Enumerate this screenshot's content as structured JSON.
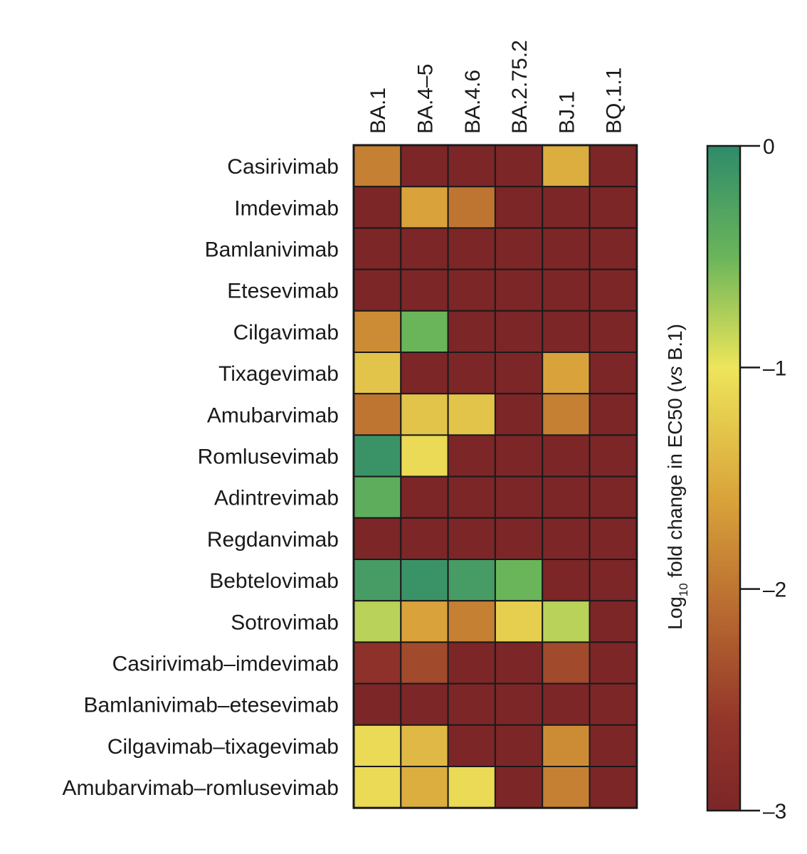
{
  "chart_data": {
    "type": "heatmap",
    "title": "",
    "columns": [
      "BA.1",
      "BA.4–5",
      "BA.4.6",
      "BA.2.75.2",
      "BJ.1",
      "BQ.1.1"
    ],
    "rows": [
      "Casirivimab",
      "Imdevimab",
      "Bamlanivimab",
      "Etesevimab",
      "Cilgavimab",
      "Tixagevimab",
      "Amubarvimab",
      "Romlusevimab",
      "Adintrevimab",
      "Regdanvimab",
      "Bebtelovimab",
      "Sotrovimab",
      "Casirivimab–imdevimab",
      "Bamlanivimab–etesevimab",
      "Cilgavimab–tixagevimab",
      "Amubarvimab–romlusevimab"
    ],
    "values": [
      [
        -1.9,
        -3.0,
        -3.0,
        -3.0,
        -1.5,
        -3.0
      ],
      [
        -3.0,
        -1.6,
        -2.0,
        -3.0,
        -3.0,
        -3.0
      ],
      [
        -3.0,
        -3.0,
        -3.0,
        -3.0,
        -3.0,
        -3.0
      ],
      [
        -3.0,
        -3.0,
        -3.0,
        -3.0,
        -3.0,
        -3.0
      ],
      [
        -1.8,
        -0.5,
        -3.0,
        -3.0,
        -3.0,
        -3.0
      ],
      [
        -1.3,
        -3.0,
        -3.0,
        -3.0,
        -1.6,
        -3.0
      ],
      [
        -2.0,
        -1.3,
        -1.3,
        -3.0,
        -1.9,
        -3.0
      ],
      [
        -0.1,
        -1.1,
        -3.0,
        -3.0,
        -3.0,
        -3.0
      ],
      [
        -0.4,
        -3.0,
        -3.0,
        -3.0,
        -3.0,
        -3.0
      ],
      [
        -3.0,
        -3.0,
        -3.0,
        -3.0,
        -3.0,
        -3.0
      ],
      [
        -0.2,
        -0.1,
        -0.2,
        -0.5,
        -3.0,
        -3.0
      ],
      [
        -0.8,
        -1.6,
        -1.9,
        -1.2,
        -0.8,
        -3.0
      ],
      [
        -2.7,
        -2.4,
        -3.0,
        -3.0,
        -2.4,
        -3.0
      ],
      [
        -3.0,
        -3.0,
        -3.0,
        -3.0,
        -3.0,
        -3.0
      ],
      [
        -1.1,
        -1.4,
        -3.0,
        -3.0,
        -1.8,
        -3.0
      ],
      [
        -1.1,
        -1.5,
        -1.1,
        -3.0,
        -1.9,
        -3.0
      ]
    ],
    "colorbar": {
      "min": -3,
      "max": 0,
      "ticks": [
        0,
        -1,
        -2,
        -3
      ],
      "tick_labels": [
        "0",
        "–1",
        "–2",
        "–3"
      ],
      "colors": {
        "0": "#2e8b6a",
        "-0.5": "#6ab55a",
        "-1": "#ede55a",
        "-1.6": "#d9a23a",
        "-2.1": "#b86a30",
        "-2.6": "#93352a",
        "-3": "#7c2628"
      }
    },
    "colorbar_title": {
      "prefix": "Log",
      "subscript": "10",
      "middle": " fold change in EC50 (",
      "italic": "vs",
      "suffix": " B.1)"
    }
  }
}
